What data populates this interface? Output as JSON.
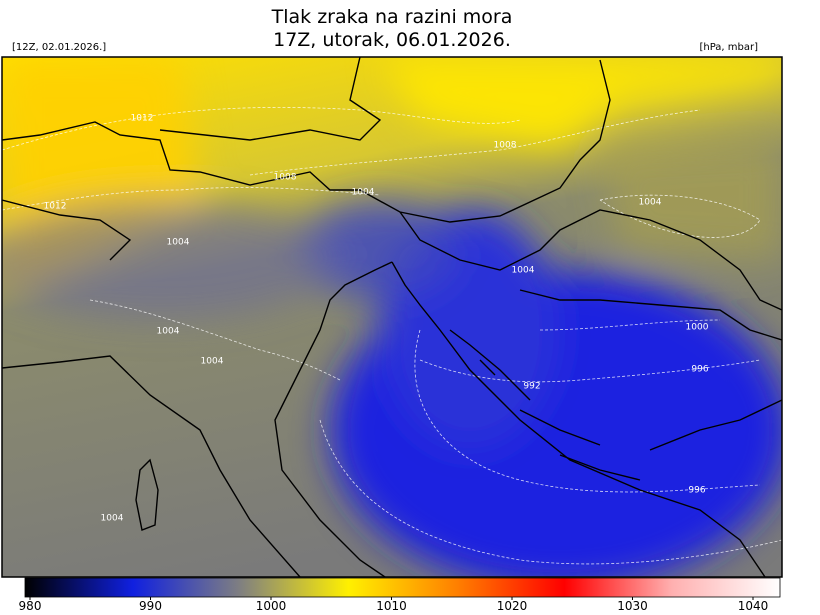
{
  "header": {
    "title": "Tlak zraka na razini mora",
    "subtitle": "17Z, utorak, 06.01.2026.",
    "run": "[12Z, 02.01.2026.]",
    "unit": "[hPa, mbar]"
  },
  "contour_labels": [
    1012,
    1008,
    1008,
    1004,
    1012,
    1004,
    1004,
    1004,
    1004,
    1004,
    1000,
    996,
    992,
    996,
    1004
  ],
  "colorbar": {
    "lim": [
      980,
      1040
    ],
    "ticks": [
      980,
      990,
      1000,
      1010,
      1020,
      1030,
      1040
    ],
    "colors": [
      "#000000",
      "#1020e0",
      "#808080",
      "#fff000",
      "#ff8000",
      "#ff0000",
      "#ffb0b0",
      "#ffffff"
    ]
  }
}
